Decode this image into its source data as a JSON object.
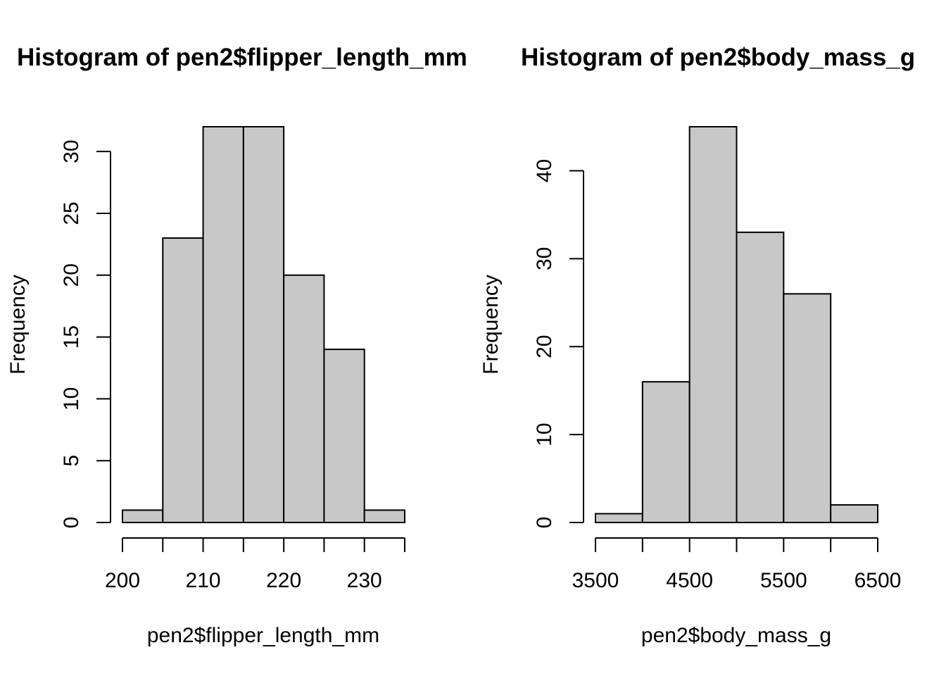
{
  "colors": {
    "bar_fill": "#c8c8c8",
    "stroke": "#000000",
    "background": "#ffffff"
  },
  "chart_data": [
    {
      "type": "bar",
      "title": "Histogram of pen2$flipper_length_mm",
      "xlabel": "pen2$flipper_length_mm",
      "ylabel": "Frequency",
      "breaks": [
        200,
        205,
        210,
        215,
        220,
        225,
        230,
        235
      ],
      "values": [
        1,
        23,
        32,
        32,
        20,
        14,
        1
      ],
      "xlim": [
        200,
        235
      ],
      "ylim": [
        0,
        32
      ],
      "x_ticks": [
        200,
        205,
        210,
        215,
        220,
        225,
        230,
        235
      ],
      "x_tick_labels": [
        "200",
        "",
        "210",
        "",
        "220",
        "",
        "230",
        ""
      ],
      "y_ticks": [
        0,
        5,
        10,
        15,
        20,
        25,
        30
      ],
      "y_tick_labels": [
        "0",
        "5",
        "10",
        "15",
        "20",
        "25",
        "30"
      ],
      "grid": false
    },
    {
      "type": "bar",
      "title": "Histogram of pen2$body_mass_g",
      "xlabel": "pen2$body_mass_g",
      "ylabel": "Frequency",
      "breaks": [
        3500,
        4000,
        4500,
        5000,
        5500,
        6000,
        6500
      ],
      "values": [
        1,
        16,
        45,
        33,
        26,
        2
      ],
      "xlim": [
        3500,
        6500
      ],
      "ylim": [
        0,
        45
      ],
      "x_ticks": [
        3500,
        4000,
        4500,
        5000,
        5500,
        6000,
        6500
      ],
      "x_tick_labels": [
        "3500",
        "",
        "4500",
        "",
        "5500",
        "",
        "6500"
      ],
      "y_ticks": [
        0,
        10,
        20,
        30,
        40
      ],
      "y_tick_labels": [
        "0",
        "10",
        "20",
        "30",
        "40"
      ],
      "grid": false
    }
  ]
}
